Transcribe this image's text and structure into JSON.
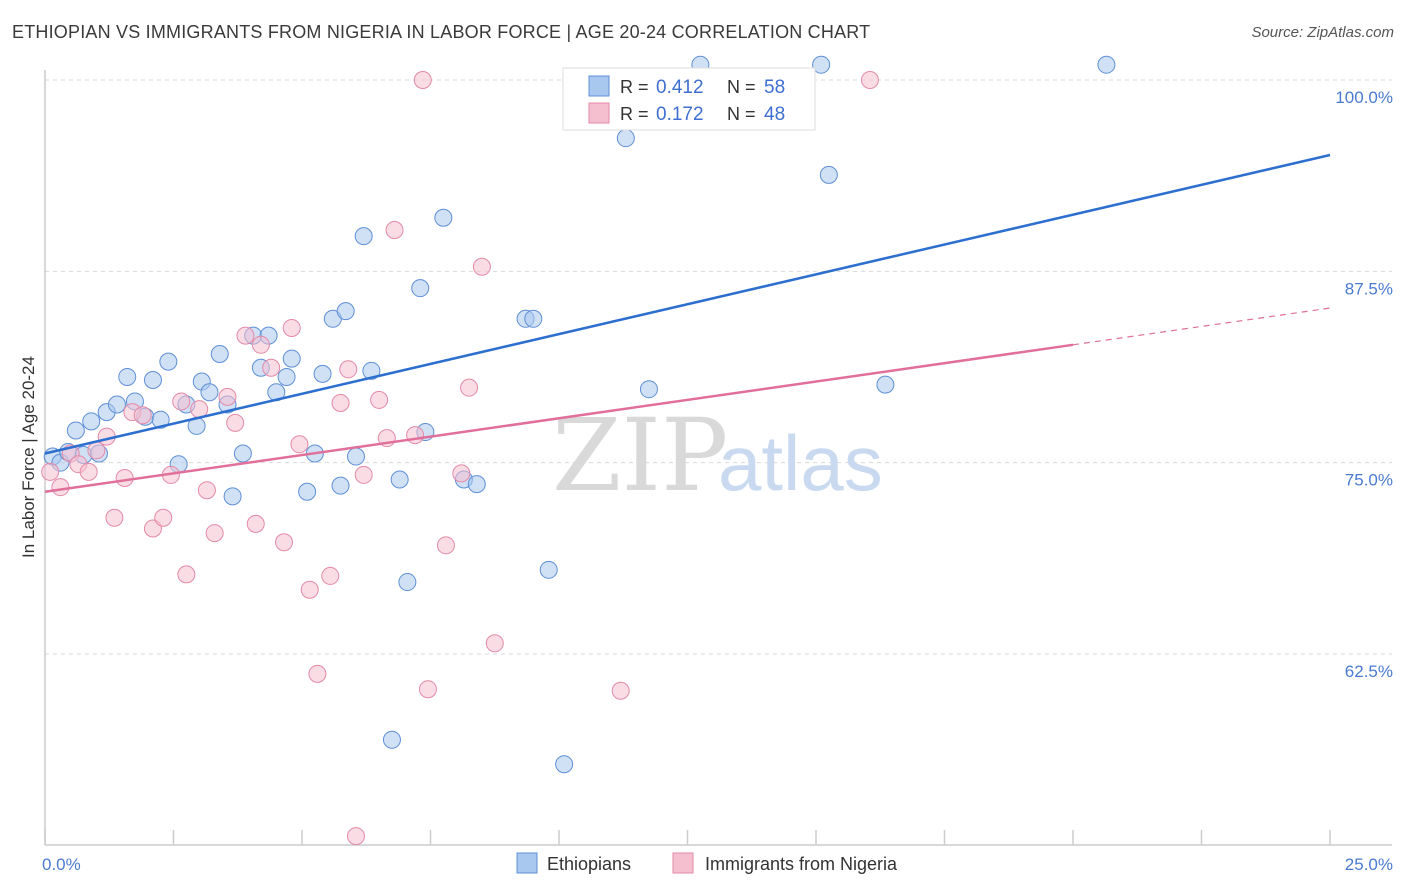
{
  "header": {
    "title": "ETHIOPIAN VS IMMIGRANTS FROM NIGERIA IN LABOR FORCE | AGE 20-24 CORRELATION CHART",
    "source": "Source: ZipAtlas.com"
  },
  "watermark": {
    "zip": "ZIP",
    "atlas": "atlas"
  },
  "colors": {
    "blue_fill": "#a9c8ef",
    "blue_stroke": "#5e8fd6",
    "blue_line": "#2d6fcf",
    "pink_fill": "#f6bfd0",
    "pink_stroke": "#e38aa8",
    "pink_line": "#e0709a",
    "grid": "#d9d9d9",
    "tick_label": "#4a7bd0"
  },
  "stats": {
    "r_label": "R =",
    "n_label": "N =",
    "series": [
      {
        "r": "0.412",
        "n": "58"
      },
      {
        "r": "0.172",
        "n": "48"
      }
    ]
  },
  "chart_data": {
    "type": "scatter",
    "title": "ETHIOPIAN VS IMMIGRANTS FROM NIGERIA IN LABOR FORCE | AGE 20-24 CORRELATION CHART",
    "xlabel": "",
    "ylabel": "In Labor Force | Age 20-24",
    "xlim": [
      0,
      25
    ],
    "ylim": [
      50.5,
      103
    ],
    "x_tick_labels": [
      {
        "value": 0,
        "label": "0.0%"
      },
      {
        "value": 25,
        "label": "25.0%"
      }
    ],
    "y_ticks": [
      {
        "value": 62.5,
        "label": "62.5%"
      },
      {
        "value": 75.0,
        "label": "75.0%"
      },
      {
        "value": 87.5,
        "label": "87.5%"
      },
      {
        "value": 100.0,
        "label": "100.0%"
      }
    ],
    "legend": [
      "Ethiopians",
      "Immigrants from Nigeria"
    ],
    "series": [
      {
        "name": "Ethiopians",
        "trend": {
          "x": [
            0,
            25
          ],
          "y": [
            75.6,
            95.1
          ]
        },
        "points": [
          {
            "x": 0.15,
            "y": 75.4
          },
          {
            "x": 0.3,
            "y": 75.0
          },
          {
            "x": 0.45,
            "y": 75.7
          },
          {
            "x": 0.6,
            "y": 77.1
          },
          {
            "x": 0.75,
            "y": 75.5
          },
          {
            "x": 0.9,
            "y": 77.7
          },
          {
            "x": 1.05,
            "y": 75.6
          },
          {
            "x": 1.2,
            "y": 78.3
          },
          {
            "x": 1.4,
            "y": 78.8
          },
          {
            "x": 1.6,
            "y": 80.6
          },
          {
            "x": 1.75,
            "y": 79.0
          },
          {
            "x": 1.95,
            "y": 78.0
          },
          {
            "x": 2.1,
            "y": 80.4
          },
          {
            "x": 2.25,
            "y": 77.8
          },
          {
            "x": 2.4,
            "y": 81.6
          },
          {
            "x": 2.6,
            "y": 74.9
          },
          {
            "x": 2.75,
            "y": 78.8
          },
          {
            "x": 2.95,
            "y": 77.4
          },
          {
            "x": 3.05,
            "y": 80.3
          },
          {
            "x": 3.2,
            "y": 79.6
          },
          {
            "x": 3.4,
            "y": 82.1
          },
          {
            "x": 3.55,
            "y": 78.8
          },
          {
            "x": 3.65,
            "y": 72.8
          },
          {
            "x": 3.85,
            "y": 75.6
          },
          {
            "x": 4.05,
            "y": 83.3
          },
          {
            "x": 4.2,
            "y": 81.2
          },
          {
            "x": 4.35,
            "y": 83.3
          },
          {
            "x": 4.5,
            "y": 79.6
          },
          {
            "x": 4.7,
            "y": 80.6
          },
          {
            "x": 4.8,
            "y": 81.8
          },
          {
            "x": 5.1,
            "y": 73.1
          },
          {
            "x": 5.25,
            "y": 75.6
          },
          {
            "x": 5.4,
            "y": 80.8
          },
          {
            "x": 5.6,
            "y": 84.4
          },
          {
            "x": 5.75,
            "y": 73.5
          },
          {
            "x": 5.85,
            "y": 84.9
          },
          {
            "x": 6.05,
            "y": 75.4
          },
          {
            "x": 6.2,
            "y": 89.8
          },
          {
            "x": 6.35,
            "y": 81.0
          },
          {
            "x": 6.75,
            "y": 56.9
          },
          {
            "x": 6.9,
            "y": 73.9
          },
          {
            "x": 7.05,
            "y": 67.2
          },
          {
            "x": 7.3,
            "y": 86.4
          },
          {
            "x": 7.4,
            "y": 77.0
          },
          {
            "x": 7.75,
            "y": 91.0
          },
          {
            "x": 8.15,
            "y": 73.9
          },
          {
            "x": 8.4,
            "y": 73.6
          },
          {
            "x": 9.35,
            "y": 84.4
          },
          {
            "x": 9.5,
            "y": 84.4
          },
          {
            "x": 9.8,
            "y": 68.0
          },
          {
            "x": 10.1,
            "y": 55.3
          },
          {
            "x": 11.3,
            "y": 96.2
          },
          {
            "x": 11.75,
            "y": 79.8
          },
          {
            "x": 12.75,
            "y": 101.0
          },
          {
            "x": 15.1,
            "y": 101.0
          },
          {
            "x": 15.25,
            "y": 93.8
          },
          {
            "x": 16.35,
            "y": 80.1
          },
          {
            "x": 20.65,
            "y": 101.0
          }
        ]
      },
      {
        "name": "Immigrants from Nigeria",
        "trend": {
          "x": [
            0,
            20.0
          ],
          "y": [
            73.1,
            82.7
          ]
        },
        "trend_dashed": {
          "x": [
            20.0,
            25
          ],
          "y": [
            82.7,
            85.1
          ]
        },
        "points": [
          {
            "x": 0.1,
            "y": 74.4
          },
          {
            "x": 0.3,
            "y": 73.4
          },
          {
            "x": 0.5,
            "y": 75.6
          },
          {
            "x": 0.65,
            "y": 74.9
          },
          {
            "x": 0.85,
            "y": 74.4
          },
          {
            "x": 1.0,
            "y": 75.8
          },
          {
            "x": 1.2,
            "y": 76.7
          },
          {
            "x": 1.35,
            "y": 71.4
          },
          {
            "x": 1.55,
            "y": 74.0
          },
          {
            "x": 1.7,
            "y": 78.3
          },
          {
            "x": 1.9,
            "y": 78.1
          },
          {
            "x": 2.1,
            "y": 70.7
          },
          {
            "x": 2.3,
            "y": 71.4
          },
          {
            "x": 2.45,
            "y": 74.2
          },
          {
            "x": 2.65,
            "y": 79.0
          },
          {
            "x": 2.75,
            "y": 67.7
          },
          {
            "x": 3.0,
            "y": 78.5
          },
          {
            "x": 3.15,
            "y": 73.2
          },
          {
            "x": 3.3,
            "y": 70.4
          },
          {
            "x": 3.55,
            "y": 79.3
          },
          {
            "x": 3.7,
            "y": 77.6
          },
          {
            "x": 3.9,
            "y": 83.3
          },
          {
            "x": 4.1,
            "y": 71.0
          },
          {
            "x": 4.2,
            "y": 82.7
          },
          {
            "x": 4.4,
            "y": 81.2
          },
          {
            "x": 4.65,
            "y": 69.8
          },
          {
            "x": 4.8,
            "y": 83.8
          },
          {
            "x": 4.95,
            "y": 76.2
          },
          {
            "x": 5.15,
            "y": 66.7
          },
          {
            "x": 5.3,
            "y": 61.2
          },
          {
            "x": 5.55,
            "y": 67.6
          },
          {
            "x": 5.75,
            "y": 78.9
          },
          {
            "x": 5.9,
            "y": 81.1
          },
          {
            "x": 6.05,
            "y": 50.6
          },
          {
            "x": 6.2,
            "y": 74.2
          },
          {
            "x": 6.5,
            "y": 79.1
          },
          {
            "x": 6.65,
            "y": 76.6
          },
          {
            "x": 6.8,
            "y": 90.2
          },
          {
            "x": 7.2,
            "y": 76.8
          },
          {
            "x": 7.35,
            "y": 100.0
          },
          {
            "x": 7.45,
            "y": 60.2
          },
          {
            "x": 7.8,
            "y": 69.6
          },
          {
            "x": 8.1,
            "y": 74.3
          },
          {
            "x": 8.25,
            "y": 79.9
          },
          {
            "x": 8.5,
            "y": 87.8
          },
          {
            "x": 8.75,
            "y": 63.2
          },
          {
            "x": 11.2,
            "y": 60.1
          },
          {
            "x": 16.05,
            "y": 100.0
          }
        ]
      }
    ]
  }
}
